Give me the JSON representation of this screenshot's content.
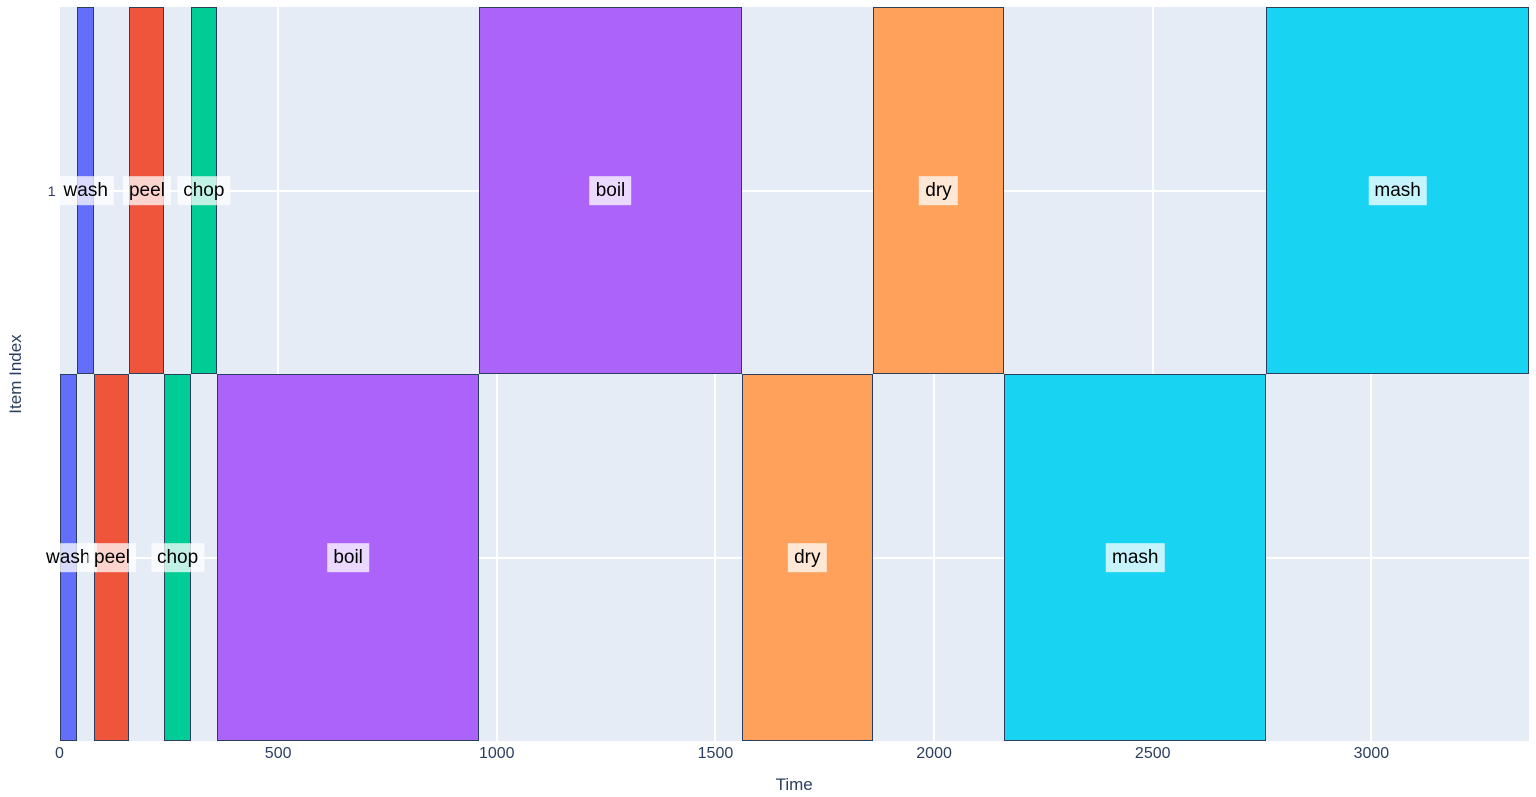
{
  "chart_data": {
    "type": "bar",
    "subtype": "gantt-timeline",
    "title": "",
    "xlabel": "Time",
    "ylabel": "Item Index",
    "x_range": [
      0,
      3360
    ],
    "x_ticks": [
      {
        "value": 0,
        "label": "0"
      },
      {
        "value": 500,
        "label": "500"
      },
      {
        "value": 1000,
        "label": "1000"
      },
      {
        "value": 1500,
        "label": "1500"
      },
      {
        "value": 2000,
        "label": "2000"
      },
      {
        "value": 2500,
        "label": "2500"
      },
      {
        "value": 3000,
        "label": "3000"
      }
    ],
    "y_categories": [
      {
        "value": 1,
        "label": "1",
        "row": "top"
      },
      {
        "value": 0,
        "label": "0",
        "row": "bottom"
      }
    ],
    "grid": true,
    "legend": false,
    "task_colors": {
      "wash": "#636EFA",
      "peel": "#EF553B",
      "chop": "#00CC96",
      "boil": "#AB63FA",
      "dry": "#FFA15A",
      "mash": "#19D3F3"
    },
    "bars": [
      {
        "item": 0,
        "task": "wash",
        "start": 0,
        "end": 40
      },
      {
        "item": 1,
        "task": "wash",
        "start": 40,
        "end": 80
      },
      {
        "item": 0,
        "task": "peel",
        "start": 80,
        "end": 160
      },
      {
        "item": 1,
        "task": "peel",
        "start": 160,
        "end": 240
      },
      {
        "item": 0,
        "task": "chop",
        "start": 240,
        "end": 300
      },
      {
        "item": 1,
        "task": "chop",
        "start": 300,
        "end": 360
      },
      {
        "item": 0,
        "task": "boil",
        "start": 360,
        "end": 960
      },
      {
        "item": 1,
        "task": "boil",
        "start": 960,
        "end": 1560
      },
      {
        "item": 0,
        "task": "dry",
        "start": 1560,
        "end": 1860
      },
      {
        "item": 1,
        "task": "dry",
        "start": 1860,
        "end": 2160
      },
      {
        "item": 0,
        "task": "mash",
        "start": 2160,
        "end": 2760
      },
      {
        "item": 1,
        "task": "mash",
        "start": 2760,
        "end": 3360
      }
    ],
    "colors": {
      "paper_bg": "#FFFFFF",
      "plot_bg": "#E5ECF6",
      "grid": "#FFFFFF",
      "bar_outline": "#2A3F5F",
      "tick_text": "#2A3F5F",
      "axis_title_text": "#2A3F5F",
      "bar_label_text": "#000000",
      "bar_label_bg": "rgba(255,255,255,0.75)"
    }
  }
}
